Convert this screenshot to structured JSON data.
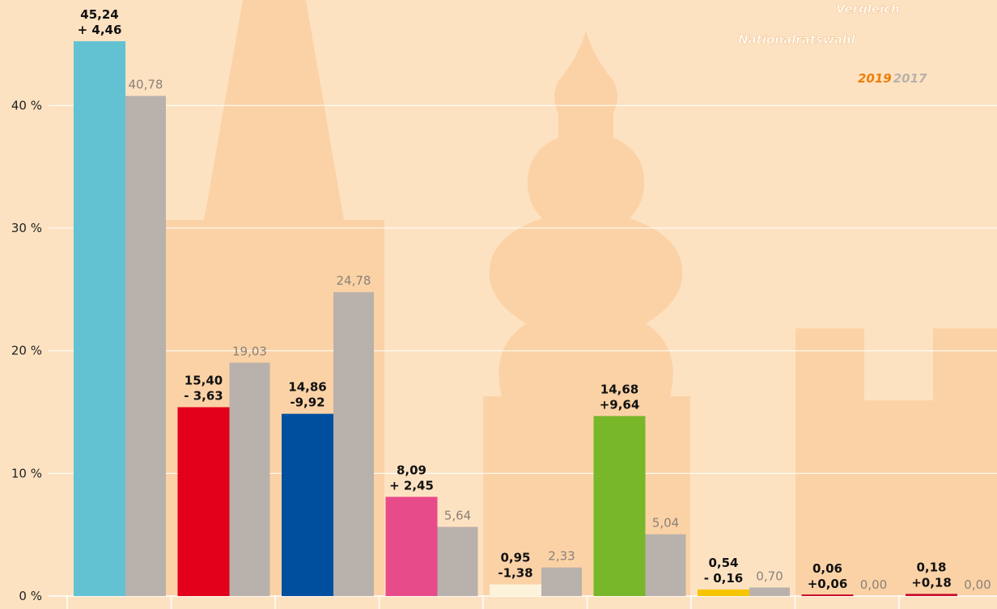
{
  "chart_data": {
    "type": "bar",
    "title_lines": [
      "Vergleich",
      "Nationalratswahl"
    ],
    "categories": [
      null,
      null,
      null,
      null,
      null,
      null,
      null,
      null,
      null
    ],
    "series": [
      {
        "name": "2019",
        "color": "#f07d00",
        "colors": [
          "#62c2d2",
          "#e2001a",
          "#004f9f",
          "#e84b8a",
          "#fdf3da",
          "#78b72a",
          "#f6c500",
          "#c8102e",
          "#c8102e"
        ],
        "values": [
          45.24,
          15.4,
          14.86,
          8.09,
          0.95,
          14.68,
          0.54,
          0.06,
          0.18
        ],
        "value_labels": [
          "45,24",
          "15,40",
          "14,86",
          "8,09",
          "0,95",
          "14,68",
          "0,54",
          "0,06",
          "0,18"
        ],
        "change_labels": [
          "+ 4,46",
          "- 3,63",
          "-9,92",
          "+ 2,45",
          "-1,38",
          "+9,64",
          "- 0,16",
          "+0,06",
          "+0,18"
        ]
      },
      {
        "name": "2017",
        "color": "#b9b1ab",
        "values": [
          40.78,
          19.03,
          24.78,
          5.64,
          2.33,
          5.04,
          0.7,
          0.0,
          0.0
        ],
        "value_labels": [
          "40,78",
          "19,03",
          "24,78",
          "5,64",
          "2,33",
          "5,04",
          "0,70",
          "0,00",
          "0,00"
        ]
      }
    ],
    "ylim": [
      0,
      48.6
    ],
    "yticks": [
      {
        "value": 0,
        "label": "0 %"
      },
      {
        "value": 10,
        "label": "10 %"
      },
      {
        "value": 20,
        "label": "20 %"
      },
      {
        "value": 30,
        "label": "30 %"
      },
      {
        "value": 40,
        "label": "40 %"
      }
    ],
    "grid": true
  }
}
